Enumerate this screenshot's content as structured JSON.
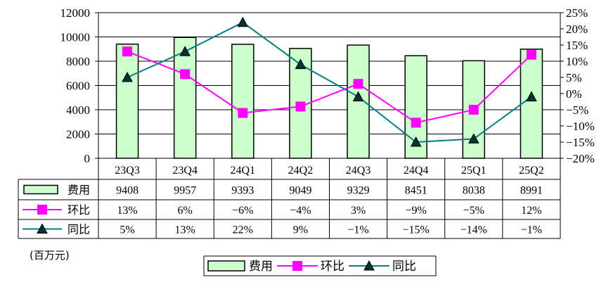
{
  "chart_data": {
    "type": "bar",
    "categories": [
      "23Q3",
      "23Q4",
      "24Q1",
      "24Q2",
      "24Q3",
      "24Q4",
      "25Q1",
      "25Q2"
    ],
    "series": [
      {
        "name": "费用",
        "type": "bar",
        "axis": "left",
        "color": "#ccffcc",
        "values": [
          9408,
          9957,
          9393,
          9049,
          9329,
          8451,
          8038,
          8991
        ],
        "labels": [
          "9408",
          "9957",
          "9393",
          "9049",
          "9329",
          "8451",
          "8038",
          "8991"
        ]
      },
      {
        "name": "环比",
        "type": "line",
        "axis": "right",
        "color": "#ff00ff",
        "marker": "square",
        "values": [
          13,
          6,
          -6,
          -4,
          3,
          -9,
          -5,
          12
        ],
        "labels": [
          "13%",
          "6%",
          "−6%",
          "−4%",
          "3%",
          "−9%",
          "−5%",
          "12%"
        ]
      },
      {
        "name": "同比",
        "type": "line",
        "axis": "right",
        "color": "#008080",
        "marker": "triangle",
        "values": [
          5,
          13,
          22,
          9,
          -1,
          -15,
          -14,
          -1
        ],
        "labels": [
          "5%",
          "13%",
          "22%",
          "9%",
          "−1%",
          "−15%",
          "−14%",
          "−1%"
        ]
      }
    ],
    "ylim": [
      0,
      12000
    ],
    "y_ticks": [
      "0",
      "2000",
      "4000",
      "6000",
      "8000",
      "10000",
      "12000"
    ],
    "y2lim": [
      -20,
      25
    ],
    "y2_ticks": [
      "−20%",
      "−15%",
      "−10%",
      "−5%",
      "0%",
      "5%",
      "10%",
      "15%",
      "20%",
      "25%"
    ],
    "unit_label": "(百万元)",
    "legend_position": "bottom-center",
    "grid": "horizontal"
  }
}
